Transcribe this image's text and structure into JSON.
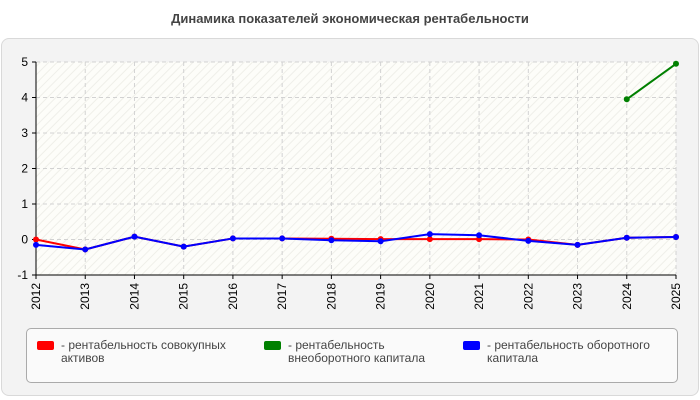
{
  "title": "Динамика показателей экономическая рентабельности",
  "legend": {
    "items": [
      {
        "label": "- рентабельность совокупных активов",
        "color": "#ff0000"
      },
      {
        "label": "- рентабельность внеоборотного капитала",
        "color": "#008000"
      },
      {
        "label": "- рентабельность оборотного капитала",
        "color": "#0000ff"
      }
    ]
  },
  "chart_data": {
    "type": "line",
    "title": "Динамика показателей экономическая рентабельности",
    "xlabel": "",
    "ylabel": "",
    "x": [
      "2012",
      "2013",
      "2014",
      "2015",
      "2016",
      "2017",
      "2018",
      "2019",
      "2020",
      "2021",
      "2022",
      "2023",
      "2024",
      "2025"
    ],
    "ylim": [
      -1,
      5
    ],
    "yticks": [
      "-1",
      "0",
      "1",
      "2",
      "3",
      "4",
      "5"
    ],
    "grid": true,
    "legend_position": "bottom",
    "series": [
      {
        "name": "- рентабельность совокупных активов",
        "color": "#ff0000",
        "values": [
          0.0,
          -0.28,
          0.08,
          -0.2,
          0.03,
          0.03,
          0.02,
          0.01,
          0.01,
          0.01,
          0.0,
          -0.15,
          0.05,
          0.07
        ]
      },
      {
        "name": "- рентабельность внеоборотного капитала",
        "color": "#008000",
        "values": [
          null,
          null,
          null,
          null,
          null,
          null,
          null,
          null,
          null,
          null,
          null,
          null,
          3.95,
          4.95
        ]
      },
      {
        "name": "- рентабельность оборотного капитала",
        "color": "#0000ff",
        "values": [
          -0.15,
          -0.28,
          0.08,
          -0.2,
          0.03,
          0.03,
          -0.02,
          -0.05,
          0.15,
          0.12,
          -0.04,
          -0.15,
          0.05,
          0.07
        ]
      }
    ]
  }
}
